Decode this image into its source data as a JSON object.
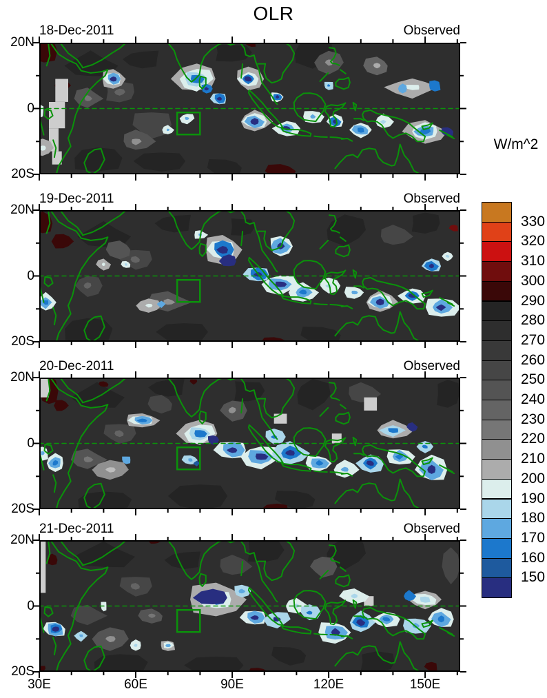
{
  "title": "OLR",
  "panels": [
    {
      "date": "18-Dec-2011",
      "source": "Observed"
    },
    {
      "date": "19-Dec-2011",
      "source": "Observed"
    },
    {
      "date": "20-Dec-2011",
      "source": "Observed"
    },
    {
      "date": "21-Dec-2011",
      "source": "Observed"
    }
  ],
  "axes": {
    "x_tick_labels": [
      "30E",
      "60E",
      "90E",
      "120E",
      "150E"
    ],
    "y_tick_labels": [
      "20N",
      "0",
      "20S"
    ]
  },
  "colorbar": {
    "units_label": "W/m^2",
    "tick_labels_top_to_bottom": [
      "330",
      "320",
      "310",
      "300",
      "290",
      "280",
      "270",
      "260",
      "250",
      "240",
      "230",
      "220",
      "210",
      "200",
      "190",
      "180",
      "170",
      "160",
      "150"
    ],
    "cell_colors_top_to_bottom": [
      "#c87820",
      "#e04118",
      "#cc1111",
      "#700d0d",
      "#3a0808",
      "#242424",
      "#2e2e2e",
      "#393939",
      "#464646",
      "#545454",
      "#646464",
      "#767676",
      "#909090",
      "#acacac",
      "#dceeec",
      "#aad6ea",
      "#5ea8e0",
      "#1c78cc",
      "#1e5a9e",
      "#282e80"
    ]
  },
  "chart_data": {
    "type": "heatmap",
    "title": "OLR",
    "units": "W/m^2",
    "panel_dates": [
      "18-Dec-2011",
      "19-Dec-2011",
      "20-Dec-2011",
      "21-Dec-2011"
    ],
    "panel_source_label": "Observed",
    "x_axis": {
      "tick_labels": [
        "30E",
        "60E",
        "90E",
        "120E",
        "150E"
      ],
      "tick_values_deg_east": [
        30,
        60,
        90,
        120,
        150
      ],
      "range_deg_east": [
        30,
        160
      ]
    },
    "y_axis": {
      "tick_labels": [
        "20N",
        "0",
        "20S"
      ],
      "tick_values_deg_north": [
        20,
        0,
        -20
      ],
      "range_deg_north": [
        -20,
        20
      ]
    },
    "contour_levels_w_m2": [
      150,
      160,
      170,
      180,
      190,
      200,
      210,
      220,
      230,
      240,
      250,
      260,
      270,
      280,
      290,
      300,
      310,
      320,
      330
    ],
    "level_colors_low_to_high": [
      "#282e80",
      "#1e5a9e",
      "#1c78cc",
      "#5ea8e0",
      "#aad6ea",
      "#dceeec",
      "#acacac",
      "#909090",
      "#767676",
      "#646464",
      "#545454",
      "#464646",
      "#393939",
      "#2e2e2e",
      "#242424",
      "#3a0808",
      "#700d0d",
      "#cc1111",
      "#e04118",
      "#c87820"
    ],
    "legend_position": "right",
    "overlay": {
      "coastline_color": "#0a930a",
      "equator_line": "green dashed line at 0 latitude",
      "reference_box": "green rectangle approx 73E-80E, 1S-8S in each panel",
      "missing_data_color": "#cdcdcd"
    }
  }
}
